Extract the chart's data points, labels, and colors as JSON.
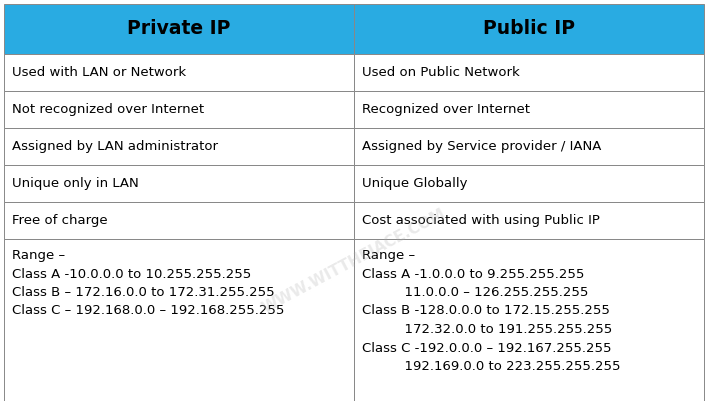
{
  "header_bg": "#29ABE2",
  "header_text_color": "#000000",
  "row_bg": "#FFFFFF",
  "border_color": "#888888",
  "col1_header": "Private IP",
  "col2_header": "Public IP",
  "rows": [
    {
      "col1": "Used with LAN or Network",
      "col2": "Used on Public Network"
    },
    {
      "col1": "Not recognized over Internet",
      "col2": "Recognized over Internet"
    },
    {
      "col1": "Assigned by LAN administrator",
      "col2": "Assigned by Service provider / IANA"
    },
    {
      "col1": "Unique only in LAN",
      "col2": "Unique Globally"
    },
    {
      "col1": "Free of charge",
      "col2": "Cost associated with using Public IP"
    },
    {
      "col1": "Range –\nClass A -10.0.0.0 to 10.255.255.255\nClass B – 172.16.0.0 to 172.31.255.255\nClass C – 192.168.0.0 – 192.168.255.255",
      "col2": "Range –\nClass A -1.0.0.0 to 9.255.255.255\n          11.0.0.0 – 126.255.255.255\nClass B -128.0.0.0 to 172.15.255.255\n          172.32.0.0 to 191.255.255.255\nClass C -192.0.0.0 – 192.167.255.255\n          192.169.0.0 to 223.255.255.255"
    }
  ],
  "figsize": [
    7.08,
    4.01
  ],
  "dpi": 100,
  "header_fontsize": 13.5,
  "cell_fontsize": 9.5,
  "watermark_text": "WWW.WITTHEJACE.COM",
  "watermark_color": "#AAAAAA",
  "watermark_alpha": 0.25
}
